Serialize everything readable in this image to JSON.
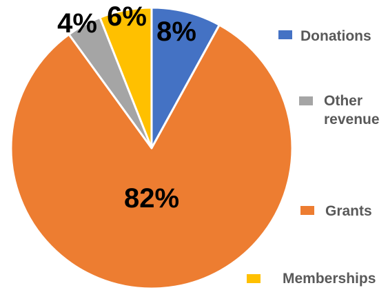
{
  "chart_data": {
    "type": "pie",
    "title": "",
    "start_angle_deg": 90,
    "direction": "clockwise",
    "legend_position": "right",
    "slices": [
      {
        "name": "Donations",
        "value": 8,
        "label": "8%",
        "color": "#4472C4"
      },
      {
        "name": "Grants",
        "value": 82,
        "label": "82%",
        "color": "#ED7D31"
      },
      {
        "name": "Other revenue",
        "value": 4,
        "label": "4%",
        "color": "#A5A5A5"
      },
      {
        "name": "Memberships",
        "value": 6,
        "label": "6%",
        "color": "#FFC000"
      }
    ]
  },
  "legend": {
    "items": [
      {
        "name": "Donations",
        "color": "#4472C4"
      },
      {
        "name": "Other\nrevenue",
        "color": "#A5A5A5"
      },
      {
        "name": "Grants",
        "color": "#ED7D31"
      },
      {
        "name": "Memberships",
        "color": "#FFC000"
      }
    ]
  }
}
